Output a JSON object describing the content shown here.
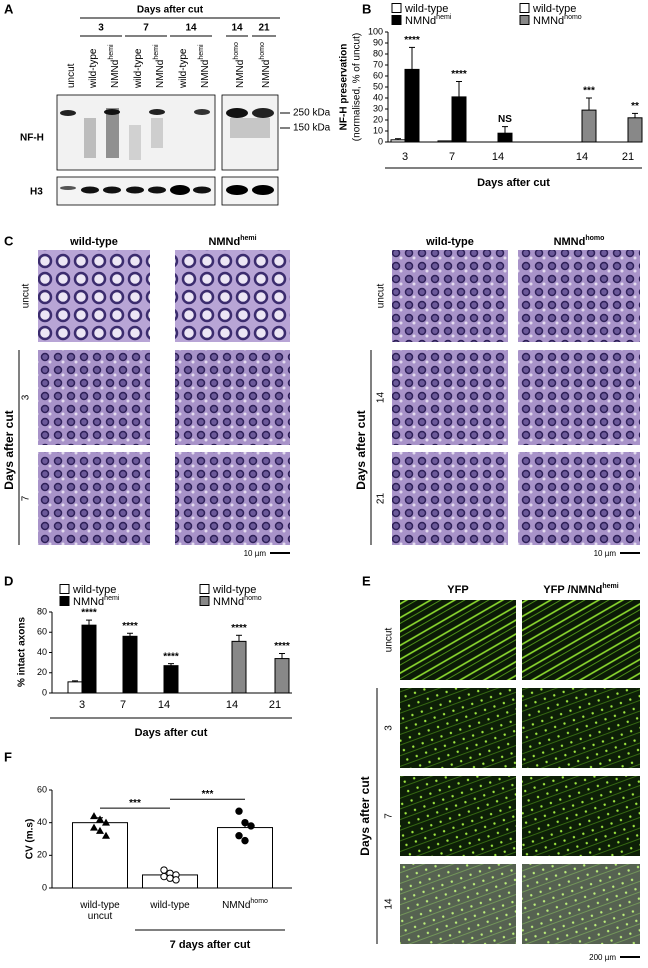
{
  "panel_labels": [
    "A",
    "B",
    "C",
    "D",
    "E",
    "F"
  ],
  "blot": {
    "title": "Days after cut",
    "days": [
      "3",
      "7",
      "14",
      "14",
      "21"
    ],
    "lanes": [
      {
        "text": "uncut"
      },
      {
        "text": "wild-type"
      },
      {
        "text": "NMNd",
        "sup": "hemi"
      },
      {
        "text": "wild-type"
      },
      {
        "text": "NMNd",
        "sup": "hemi"
      },
      {
        "text": "wild-type"
      },
      {
        "text": "NMNd",
        "sup": "hemi"
      },
      {
        "text": "NMNd",
        "sup": "homo"
      },
      {
        "text": "NMNd",
        "sup": "homo"
      }
    ],
    "markers": [
      "250 kDa",
      "150 kDa"
    ],
    "rows": [
      "NF-H",
      "H3"
    ]
  },
  "micrographs": {
    "left": {
      "columns": [
        {
          "text": "wild-type"
        },
        {
          "text": "NMNd",
          "sup": "hemi"
        }
      ],
      "rows": [
        "uncut",
        "3",
        "7"
      ],
      "axis_label": "Days after cut",
      "scale": "10 µm"
    },
    "right": {
      "columns": [
        {
          "text": "wild-type"
        },
        {
          "text": "NMNd",
          "sup": "homo"
        }
      ],
      "rows": [
        "uncut",
        "14",
        "21"
      ],
      "axis_label": "Days after cut",
      "scale": "10 µm"
    }
  },
  "fluorescence": {
    "columns": [
      {
        "text": "YFP"
      },
      {
        "text": "YFP /NMNd",
        "sup": "hemi"
      }
    ],
    "rows": [
      "uncut",
      "3",
      "7",
      "14"
    ],
    "axis_label": "Days after cut",
    "scale": "200 µm"
  },
  "chart_data": [
    {
      "type": "bar",
      "ylabel": [
        "NF-H preservation",
        "(normalised, % of uncut)"
      ],
      "xlabel": "Days after cut",
      "categories": [
        "3",
        "7",
        "14",
        "14",
        "21"
      ],
      "ylim": [
        0,
        100
      ],
      "yticks": [
        0,
        10,
        20,
        30,
        40,
        50,
        60,
        70,
        80,
        90,
        100
      ],
      "series": [
        {
          "name": "wild-type",
          "color": "#ffffff",
          "values": [
            2,
            1,
            0,
            null,
            null
          ],
          "errors": [
            1,
            null,
            null,
            null,
            null
          ]
        },
        {
          "name": "NMNd",
          "name_sup": "hemi",
          "color": "#000000",
          "values": [
            66,
            41,
            8,
            null,
            null
          ],
          "errors": [
            20,
            14,
            6,
            null,
            null
          ]
        },
        {
          "name": "wild-type",
          "color": "#ffffff",
          "values": [
            null,
            null,
            null,
            0,
            0
          ],
          "errors": [
            null,
            null,
            null,
            null,
            null
          ]
        },
        {
          "name": "NMNd",
          "name_sup": "homo",
          "color": "#888888",
          "values": [
            null,
            null,
            null,
            29,
            22
          ],
          "errors": [
            null,
            null,
            null,
            11,
            4
          ]
        }
      ],
      "annotations": [
        "****",
        "****",
        "NS",
        "***",
        "**"
      ]
    },
    {
      "type": "bar",
      "ylabel": [
        "% intact axons"
      ],
      "xlabel": "Days after cut",
      "categories": [
        "3",
        "7",
        "14",
        "14",
        "21"
      ],
      "ylim": [
        0,
        80
      ],
      "yticks": [
        0,
        20,
        40,
        60,
        80
      ],
      "series": [
        {
          "name": "wild-type",
          "color": "#ffffff",
          "values": [
            11,
            0,
            0,
            null,
            null
          ],
          "errors": [
            1,
            null,
            null,
            null,
            null
          ]
        },
        {
          "name": "NMNd",
          "name_sup": "hemi",
          "color": "#000000",
          "values": [
            67,
            56,
            27,
            null,
            null
          ],
          "errors": [
            5,
            3,
            2,
            null,
            null
          ]
        },
        {
          "name": "wild-type",
          "color": "#ffffff",
          "values": [
            null,
            null,
            null,
            0,
            0
          ],
          "errors": [
            null,
            null,
            null,
            null,
            null
          ]
        },
        {
          "name": "NMNd",
          "name_sup": "homo",
          "color": "#888888",
          "values": [
            null,
            null,
            null,
            51,
            34
          ],
          "errors": [
            null,
            null,
            null,
            6,
            5
          ]
        }
      ],
      "annotations": [
        "****",
        "****",
        "****",
        "****",
        "****"
      ]
    },
    {
      "type": "bar",
      "ylabel": [
        "CV (m.s)"
      ],
      "xlabel": "7 days after cut",
      "categories": [
        {
          "lines": [
            "wild-type",
            "uncut"
          ]
        },
        {
          "lines": [
            "wild-type"
          ]
        },
        {
          "lines": [
            "NMNd"
          ],
          "sup": "homo"
        }
      ],
      "ylim": [
        0,
        60
      ],
      "yticks": [
        0,
        20,
        40,
        60
      ],
      "series": [
        {
          "color": "#ffffff",
          "values": [
            40,
            8,
            37
          ],
          "errors": [
            3,
            1.5,
            3
          ]
        }
      ],
      "points": [
        [
          44,
          42,
          40,
          37,
          35,
          32
        ],
        [
          11,
          9,
          8,
          7,
          6,
          5
        ],
        [
          47,
          40,
          38,
          32,
          29
        ]
      ],
      "markers": [
        "triangle",
        "circle-open",
        "circle"
      ],
      "annotations": [
        "***",
        "***"
      ]
    }
  ]
}
